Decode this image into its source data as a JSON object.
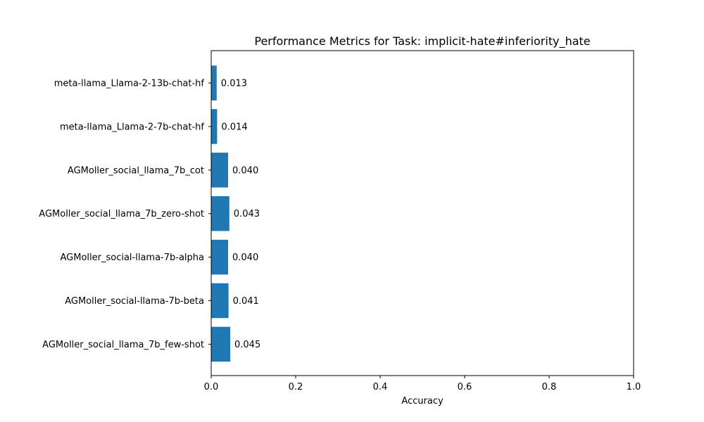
{
  "chart_data": {
    "type": "bar",
    "orientation": "horizontal",
    "title": "Performance Metrics for Task: implicit-hate#inferiority_hate",
    "xlabel": "Accuracy",
    "ylabel": "",
    "xlim": [
      0,
      1
    ],
    "xticks": [
      "0.0",
      "0.2",
      "0.4",
      "0.6",
      "0.8",
      "1.0"
    ],
    "bar_color": "#1f77b4",
    "grid": false,
    "categories": [
      "meta-llama_Llama-2-13b-chat-hf",
      "meta-llama_Llama-2-7b-chat-hf",
      "AGMoller_social_llama_7b_cot",
      "AGMoller_social_llama_7b_zero-shot",
      "AGMoller_social-llama-7b-alpha",
      "AGMoller_social-llama-7b-beta",
      "AGMoller_social_llama_7b_few-shot"
    ],
    "values": [
      0.013,
      0.014,
      0.04,
      0.043,
      0.04,
      0.041,
      0.045
    ],
    "value_labels": [
      "0.013",
      "0.014",
      "0.040",
      "0.043",
      "0.040",
      "0.041",
      "0.045"
    ]
  }
}
